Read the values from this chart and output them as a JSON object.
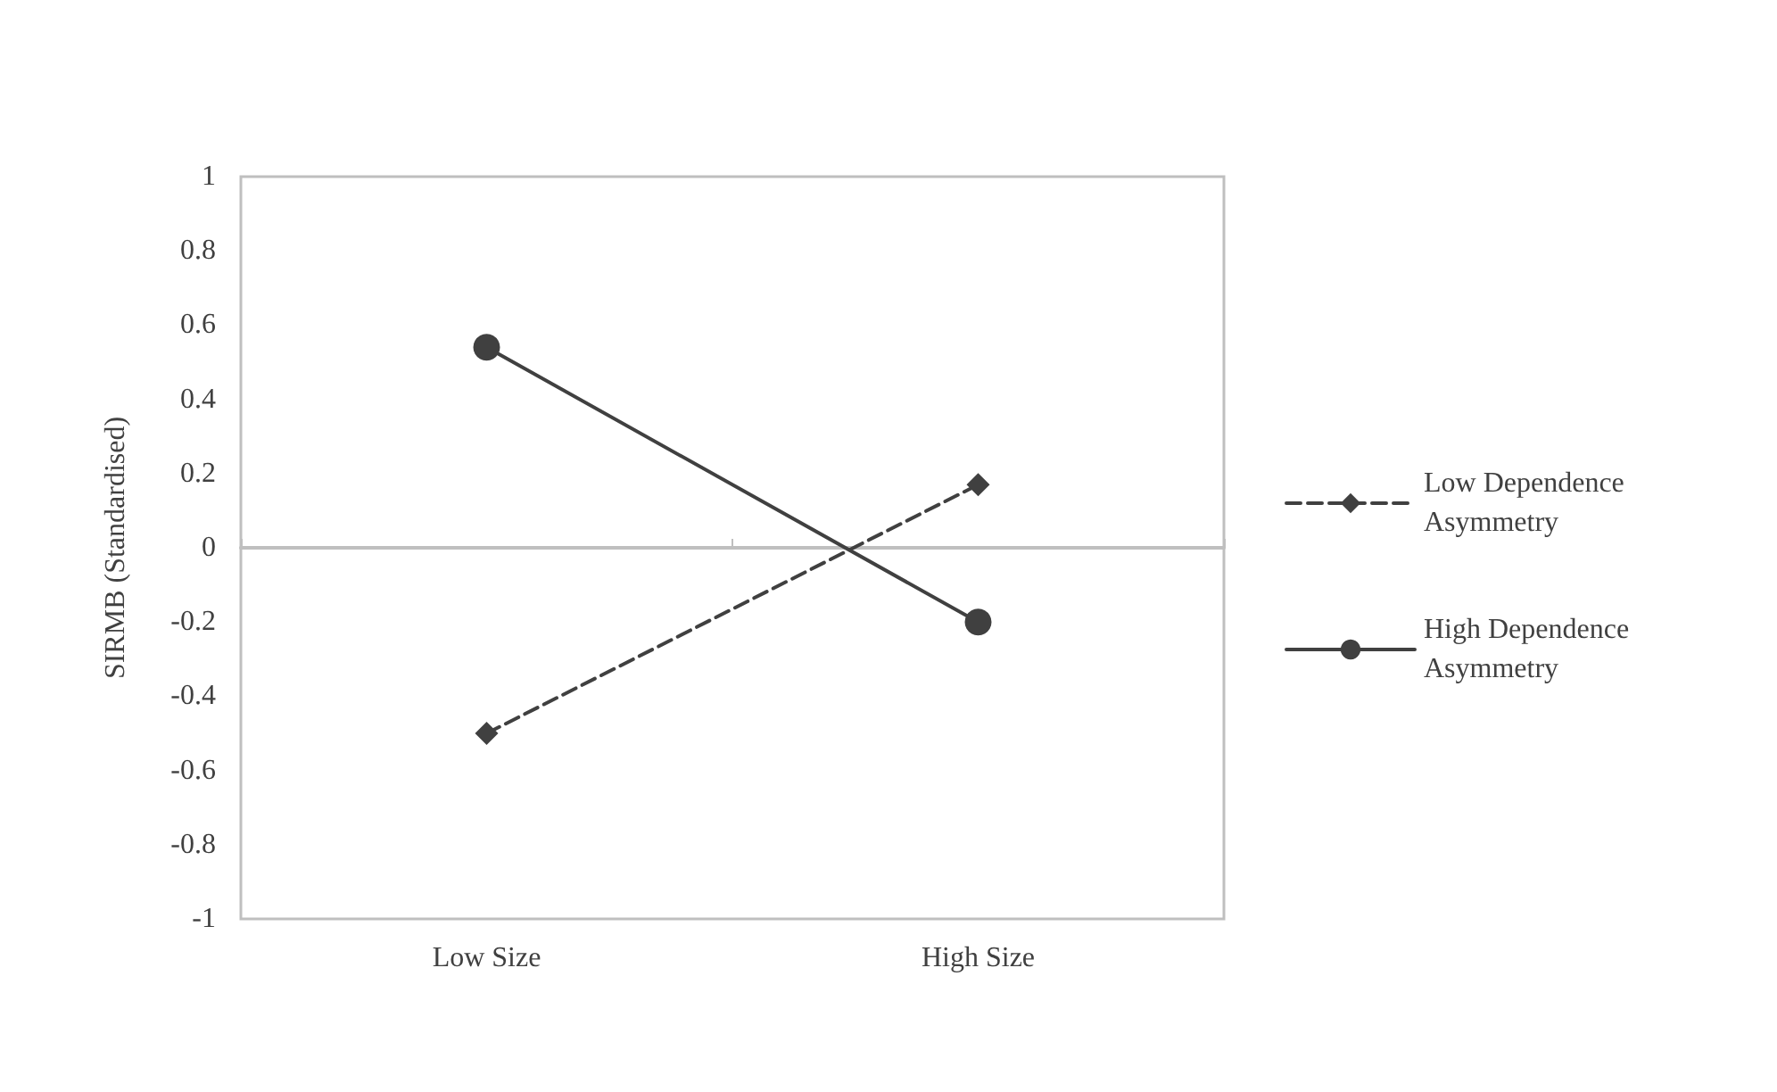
{
  "chart_data": {
    "type": "line",
    "ylabel": "SIRMB (Standardised)",
    "categories": [
      "Low Size",
      "High Size"
    ],
    "series": [
      {
        "name": "Low Dependence Asymmetry",
        "color": "#404040",
        "values": [
          -0.5,
          0.17
        ],
        "marker": "diamond",
        "line_style": "dashed"
      },
      {
        "name": "High Dependence Asymmetry",
        "color": "#404040",
        "values": [
          0.54,
          -0.2
        ],
        "marker": "circle",
        "line_style": "solid"
      }
    ],
    "ylim": [
      -1,
      1
    ],
    "yticks": [
      -1,
      -0.8,
      -0.6,
      -0.4,
      -0.2,
      0,
      0.2,
      0.4,
      0.6,
      0.8,
      1
    ],
    "legend": "right"
  }
}
